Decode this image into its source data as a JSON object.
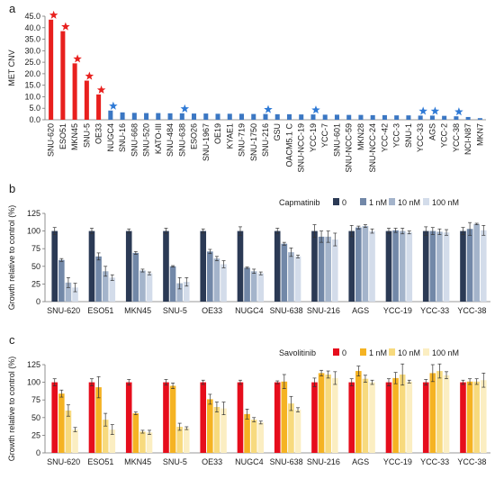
{
  "chart_data": [
    {
      "panel": "a",
      "type": "bar",
      "ylabel": "MET CNV",
      "ylim": [
        0,
        45
      ],
      "yticks": [
        "0.0",
        "5.0",
        "10.0",
        "15.0",
        "20.0",
        "25.0",
        "30.0",
        "35.0",
        "40.0",
        "45.0"
      ],
      "ytick_values": [
        0,
        5,
        10,
        15,
        20,
        25,
        30,
        35,
        40,
        45
      ],
      "categories": [
        "SNU-620",
        "ESO51",
        "MKN45",
        "SNU-5",
        "OE33",
        "NUGC4",
        "SNU-16",
        "SNU-668",
        "SNU-520",
        "KATO-III",
        "SNU-484",
        "SNU-638",
        "ESO26",
        "SNU-1967",
        "OE19",
        "KYAE1",
        "SNU-719",
        "SNU-1750",
        "SNU-216",
        "GSU",
        "OACM5.1 C",
        "SNU-NCC-19",
        "YCC-19",
        "YCC-7",
        "SNU-601",
        "SNU-NCC-59",
        "MKN28",
        "SNU-NCC-24",
        "YCC-42",
        "YCC-3",
        "SNU-1",
        "YCC-33",
        "AGS",
        "YCC-2",
        "YCC-38",
        "NCI-N87",
        "MKN7"
      ],
      "values": [
        43.5,
        38.5,
        24.5,
        17.0,
        11.0,
        4.0,
        3.2,
        3.0,
        2.9,
        2.9,
        2.8,
        2.8,
        2.7,
        2.7,
        2.6,
        2.6,
        2.6,
        2.5,
        2.5,
        2.4,
        2.4,
        2.3,
        2.3,
        2.2,
        2.2,
        2.1,
        2.1,
        2.0,
        2.0,
        1.9,
        1.9,
        1.8,
        1.8,
        1.7,
        1.5,
        1.2,
        0.7
      ],
      "bar_colors": [
        "#e8201e",
        "#e8201e",
        "#e8201e",
        "#e8201e",
        "#e8201e",
        "#3b77c3",
        "#3b77c3",
        "#3b77c3",
        "#3b77c3",
        "#3b77c3",
        "#3b77c3",
        "#3b77c3",
        "#3b77c3",
        "#3b77c3",
        "#3b77c3",
        "#3b77c3",
        "#3b77c3",
        "#3b77c3",
        "#3b77c3",
        "#3b77c3",
        "#3b77c3",
        "#3b77c3",
        "#3b77c3",
        "#3b77c3",
        "#3b77c3",
        "#3b77c3",
        "#3b77c3",
        "#3b77c3",
        "#3b77c3",
        "#3b77c3",
        "#3b77c3",
        "#3b77c3",
        "#3b77c3",
        "#3b77c3",
        "#3b77c3",
        "#3b77c3",
        "#3b77c3"
      ],
      "starred": [
        "SNU-620",
        "ESO51",
        "MKN45",
        "SNU-5",
        "OE33",
        "NUGC4",
        "SNU-638",
        "SNU-216",
        "YCC-19",
        "YCC-33",
        "AGS",
        "YCC-38"
      ],
      "star_colors": {
        "red": "#e8201e",
        "blue": "#2f7ad6"
      },
      "grid": false
    },
    {
      "panel": "b",
      "type": "bar",
      "legend_title": "Capmatinib",
      "legend_placement": "top-right",
      "ylabel": "Growth relative to control (%)",
      "ylim": [
        0,
        125
      ],
      "yticks": [
        "0",
        "25",
        "50",
        "75",
        "100",
        "125"
      ],
      "ytick_values": [
        0,
        25,
        50,
        75,
        100,
        125
      ],
      "categories": [
        "SNU-620",
        "ESO51",
        "MKN45",
        "SNU-5",
        "OE33",
        "NUGC4",
        "SNU-638",
        "SNU-216",
        "AGS",
        "YCC-19",
        "YCC-33",
        "YCC-38"
      ],
      "series": [
        {
          "name": "0",
          "color": "#2b3a55",
          "values": [
            100,
            100,
            100,
            100,
            100,
            100,
            100,
            100,
            100,
            100,
            100,
            100
          ],
          "errors": [
            5,
            4,
            3,
            4,
            3,
            6,
            4,
            9,
            8,
            4,
            6,
            5
          ]
        },
        {
          "name": "1 nM",
          "color": "#7288a8",
          "values": [
            59,
            64,
            69,
            50,
            71,
            48,
            82,
            92,
            105,
            101,
            100,
            103
          ],
          "errors": [
            2,
            5,
            2,
            1,
            3,
            1,
            2,
            8,
            2,
            3,
            5,
            9
          ]
        },
        {
          "name": "10 nM",
          "color": "#a4b4cb",
          "values": [
            27,
            43,
            44,
            26,
            61,
            43,
            70,
            92,
            107,
            100,
            99,
            110
          ],
          "errors": [
            7,
            7,
            2,
            8,
            3,
            3,
            6,
            8,
            2,
            4,
            4,
            1
          ]
        },
        {
          "name": "100 nM",
          "color": "#d3dcea",
          "values": [
            20,
            34,
            40,
            28,
            53,
            40,
            64,
            88,
            100,
            98,
            98,
            101
          ],
          "errors": [
            6,
            4,
            2,
            6,
            5,
            2,
            2,
            9,
            3,
            2,
            4,
            7
          ]
        }
      ],
      "grid": false
    },
    {
      "panel": "c",
      "type": "bar",
      "legend_title": "Savolitinib",
      "legend_placement": "top-right",
      "ylabel": "Growth relative to control (%)",
      "ylim": [
        0,
        125
      ],
      "yticks": [
        "0",
        "25",
        "50",
        "75",
        "100",
        "125"
      ],
      "ytick_values": [
        0,
        25,
        50,
        75,
        100,
        125
      ],
      "categories": [
        "SNU-620",
        "ESO51",
        "MKN45",
        "SNU-5",
        "OE33",
        "NUGC4",
        "SNU-638",
        "SNU-216",
        "AGS",
        "YCC-19",
        "YCC-33",
        "YCC-38"
      ],
      "series": [
        {
          "name": "0",
          "color": "#e60d1c",
          "values": [
            100,
            100,
            100,
            100,
            100,
            100,
            100,
            100,
            100,
            100,
            100,
            100
          ],
          "errors": [
            5,
            5,
            4,
            4,
            3,
            3,
            2,
            6,
            5,
            5,
            4,
            3
          ]
        },
        {
          "name": "1 nM",
          "color": "#f5b323",
          "values": [
            84,
            93,
            56,
            95,
            76,
            55,
            101,
            113,
            116,
            106,
            113,
            101
          ],
          "errors": [
            5,
            15,
            2,
            4,
            7,
            7,
            10,
            4,
            7,
            8,
            12,
            4
          ]
        },
        {
          "name": "10 nM",
          "color": "#f7da7e",
          "values": [
            60,
            47,
            30,
            37,
            65,
            47,
            70,
            111,
            105,
            111,
            116,
            101
          ],
          "errors": [
            8,
            9,
            2,
            5,
            7,
            3,
            10,
            5,
            5,
            15,
            10,
            4
          ]
        },
        {
          "name": "100 nM",
          "color": "#fbeec2",
          "values": [
            33,
            33,
            29,
            35,
            63,
            43,
            61,
            106,
            100,
            101,
            110,
            103
          ],
          "errors": [
            3,
            7,
            3,
            2,
            9,
            2,
            3,
            9,
            3,
            2,
            5,
            10
          ]
        }
      ],
      "grid": false
    }
  ]
}
